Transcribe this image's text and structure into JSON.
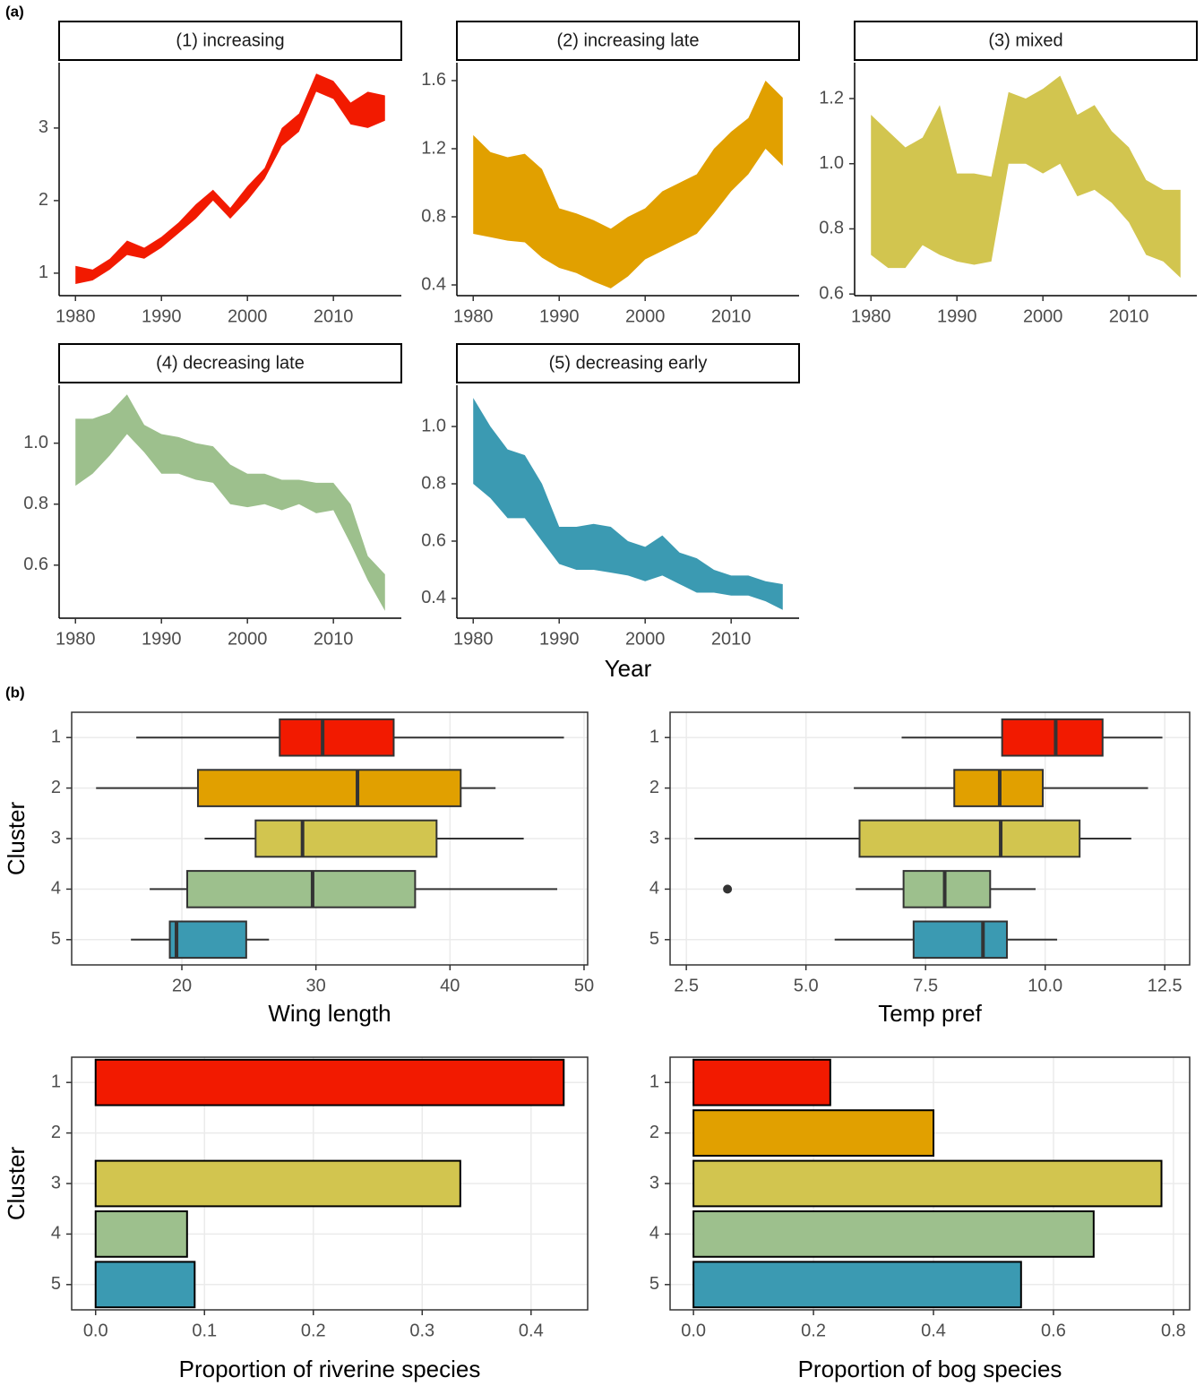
{
  "panel_labels": [
    "(a)",
    "(b)"
  ],
  "chart_data": [
    {
      "type": "ribbon",
      "title": "(1) increasing",
      "color": "#f21a00",
      "x": [
        1980,
        1982,
        1984,
        1986,
        1988,
        1990,
        1992,
        1994,
        1996,
        1998,
        2000,
        2002,
        2004,
        2006,
        2008,
        2010,
        2012,
        2014,
        2016
      ],
      "lower": [
        0.85,
        0.9,
        1.05,
        1.25,
        1.2,
        1.35,
        1.55,
        1.75,
        2.0,
        1.75,
        2.0,
        2.3,
        2.75,
        2.95,
        3.5,
        3.4,
        3.05,
        3.0,
        3.1
      ],
      "upper": [
        1.1,
        1.05,
        1.2,
        1.45,
        1.35,
        1.5,
        1.7,
        1.95,
        2.15,
        1.9,
        2.2,
        2.45,
        3.0,
        3.2,
        3.75,
        3.65,
        3.35,
        3.5,
        3.45
      ],
      "xlim": [
        1978.1,
        2017.9
      ],
      "ylim": [
        0.69,
        3.9
      ],
      "xticks": [
        1980,
        1990,
        2000,
        2010
      ],
      "yticks": [
        1,
        2,
        3
      ]
    },
    {
      "type": "ribbon",
      "title": "(2) increasing late",
      "color": "#e1a000",
      "x": [
        1980,
        1982,
        1984,
        1986,
        1988,
        1990,
        1992,
        1994,
        1996,
        1998,
        2000,
        2002,
        2004,
        2006,
        2008,
        2010,
        2012,
        2014,
        2016
      ],
      "lower": [
        0.7,
        0.68,
        0.66,
        0.65,
        0.56,
        0.5,
        0.47,
        0.42,
        0.38,
        0.45,
        0.55,
        0.6,
        0.65,
        0.7,
        0.82,
        0.95,
        1.05,
        1.2,
        1.1
      ],
      "upper": [
        1.28,
        1.18,
        1.15,
        1.17,
        1.08,
        0.85,
        0.82,
        0.78,
        0.73,
        0.8,
        0.85,
        0.95,
        1.0,
        1.05,
        1.2,
        1.3,
        1.38,
        1.6,
        1.5
      ],
      "xlim": [
        1978.1,
        2017.9
      ],
      "ylim": [
        0.337,
        1.705
      ],
      "xticks": [
        1980,
        1990,
        2000,
        2010
      ],
      "yticks": [
        0.4,
        0.8,
        1.2,
        1.6
      ]
    },
    {
      "type": "ribbon",
      "title": "(3) mixed",
      "color": "#d2c54f",
      "x": [
        1980,
        1982,
        1984,
        1986,
        1988,
        1990,
        1992,
        1994,
        1996,
        1998,
        2000,
        2002,
        2004,
        2006,
        2008,
        2010,
        2012,
        2014,
        2016
      ],
      "lower": [
        0.72,
        0.68,
        0.68,
        0.75,
        0.72,
        0.7,
        0.69,
        0.7,
        1.0,
        1.0,
        0.97,
        1.0,
        0.9,
        0.92,
        0.88,
        0.82,
        0.72,
        0.7,
        0.65
      ],
      "upper": [
        1.15,
        1.1,
        1.05,
        1.08,
        1.18,
        0.97,
        0.97,
        0.96,
        1.22,
        1.2,
        1.23,
        1.27,
        1.15,
        1.18,
        1.1,
        1.05,
        0.95,
        0.92,
        0.92
      ],
      "xlim": [
        1978.1,
        2017.9
      ],
      "ylim": [
        0.595,
        1.31
      ],
      "xticks": [
        1980,
        1990,
        2000,
        2010
      ],
      "yticks": [
        0.6,
        0.8,
        {
          "value": 1,
          "label": "1.0"
        },
        1.2
      ]
    },
    {
      "type": "ribbon",
      "title": "(4) decreasing late",
      "color": "#9dc08d",
      "x": [
        1980,
        1982,
        1984,
        1986,
        1988,
        1990,
        1992,
        1994,
        1996,
        1998,
        2000,
        2002,
        2004,
        2006,
        2008,
        2010,
        2012,
        2014,
        2016
      ],
      "lower": [
        0.86,
        0.9,
        0.96,
        1.03,
        0.97,
        0.9,
        0.9,
        0.88,
        0.87,
        0.8,
        0.79,
        0.8,
        0.78,
        0.8,
        0.77,
        0.78,
        0.67,
        0.55,
        0.45
      ],
      "upper": [
        1.08,
        1.08,
        1.1,
        1.16,
        1.06,
        1.03,
        1.02,
        1.0,
        0.99,
        0.93,
        0.9,
        0.9,
        0.88,
        0.88,
        0.87,
        0.87,
        0.8,
        0.63,
        0.57
      ],
      "xlim": [
        1978.1,
        2017.9
      ],
      "ylim": [
        0.426,
        1.19
      ],
      "xticks": [
        1980,
        1990,
        2000,
        2010
      ],
      "yticks": [
        0.6,
        0.8,
        {
          "value": 1,
          "label": "1.0"
        }
      ]
    },
    {
      "type": "ribbon",
      "title": "(5) decreasing early",
      "color": "#3b9ab2",
      "xlabel": "Year",
      "x": [
        1980,
        1982,
        1984,
        1986,
        1988,
        1990,
        1992,
        1994,
        1996,
        1998,
        2000,
        2002,
        2004,
        2006,
        2008,
        2010,
        2012,
        2014,
        2016
      ],
      "lower": [
        0.8,
        0.75,
        0.68,
        0.68,
        0.6,
        0.52,
        0.5,
        0.5,
        0.49,
        0.48,
        0.46,
        0.48,
        0.45,
        0.42,
        0.42,
        0.41,
        0.41,
        0.39,
        0.36
      ],
      "upper": [
        1.1,
        1.0,
        0.92,
        0.9,
        0.8,
        0.65,
        0.65,
        0.66,
        0.65,
        0.6,
        0.58,
        0.62,
        0.56,
        0.54,
        0.5,
        0.48,
        0.48,
        0.46,
        0.45
      ],
      "xlim": [
        1978.1,
        2017.9
      ],
      "ylim": [
        0.331,
        1.144
      ],
      "xticks": [
        1980,
        1990,
        2000,
        2010
      ],
      "yticks": [
        0.4,
        0.6,
        0.8,
        {
          "value": 1,
          "label": "1.0"
        }
      ]
    },
    {
      "type": "boxplot",
      "xlabel": "Wing length",
      "ylabel": "Cluster",
      "grid": true,
      "categories": [
        "1",
        "2",
        "3",
        "4",
        "5"
      ],
      "colors": [
        "#f21a00",
        "#e1a000",
        "#d2c54f",
        "#9dc08d",
        "#3b9ab2"
      ],
      "boxes": [
        {
          "min": 16.6,
          "q1": 27.3,
          "median": 30.5,
          "q3": 35.8,
          "max": 48.5,
          "outliers": []
        },
        {
          "min": 13.6,
          "q1": 21.2,
          "median": 33.1,
          "q3": 40.8,
          "max": 43.4,
          "outliers": []
        },
        {
          "min": 21.7,
          "q1": 25.5,
          "median": 29.0,
          "q3": 39.0,
          "max": 45.5,
          "outliers": []
        },
        {
          "min": 17.6,
          "q1": 20.4,
          "median": 29.75,
          "q3": 37.4,
          "max": 48.0,
          "outliers": []
        },
        {
          "min": 16.2,
          "q1": 19.1,
          "median": 19.6,
          "q3": 24.8,
          "max": 26.5,
          "outliers": []
        }
      ],
      "xlim": [
        11.78,
        50.27
      ],
      "xticks": [
        20,
        30,
        40,
        50
      ]
    },
    {
      "type": "boxplot",
      "xlabel": "Temp pref",
      "grid": true,
      "categories": [
        "1",
        "2",
        "3",
        "4",
        "5"
      ],
      "colors": [
        "#f21a00",
        "#e1a000",
        "#d2c54f",
        "#9dc08d",
        "#3b9ab2"
      ],
      "boxes": [
        {
          "min": 7.0,
          "q1": 9.1,
          "median": 10.22,
          "q3": 11.2,
          "max": 12.45,
          "outliers": []
        },
        {
          "min": 6.0,
          "q1": 8.1,
          "median": 9.05,
          "q3": 9.95,
          "max": 12.15,
          "outliers": []
        },
        {
          "min": 2.67,
          "q1": 6.12,
          "median": 9.07,
          "q3": 10.72,
          "max": 11.8,
          "outliers": []
        },
        {
          "min": 6.04,
          "q1": 7.04,
          "median": 7.9,
          "q3": 8.85,
          "max": 9.8,
          "outliers": [
            3.36
          ]
        },
        {
          "min": 5.6,
          "q1": 7.25,
          "median": 8.7,
          "q3": 9.2,
          "max": 10.25,
          "outliers": []
        }
      ],
      "xlim": [
        2.16,
        13.02
      ],
      "xticks": [
        2.5,
        {
          "value": 5,
          "label": "5.0"
        },
        7.5,
        {
          "value": 10,
          "label": "10.0"
        },
        12.5
      ]
    },
    {
      "type": "barh",
      "xlabel": "Proportion of riverine species",
      "ylabel": "Cluster",
      "grid": true,
      "categories": [
        "1",
        "2",
        "3",
        "4",
        "5"
      ],
      "colors": [
        "#f21a00",
        "#e1a000",
        "#d2c54f",
        "#9dc08d",
        "#3b9ab2"
      ],
      "values": [
        0.43,
        0,
        0.335,
        0.084,
        0.091
      ],
      "xlim": [
        -0.022,
        0.452
      ],
      "xticks": [
        {
          "value": 0,
          "label": "0.0"
        },
        0.1,
        0.2,
        0.3,
        0.4
      ]
    },
    {
      "type": "barh",
      "xlabel": "Proportion of bog species",
      "grid": true,
      "categories": [
        "1",
        "2",
        "3",
        "4",
        "5"
      ],
      "colors": [
        "#f21a00",
        "#e1a000",
        "#d2c54f",
        "#9dc08d",
        "#3b9ab2"
      ],
      "values": [
        0.228,
        0.4,
        0.78,
        0.667,
        0.546
      ],
      "xlim": [
        -0.039,
        0.827
      ],
      "xticks": [
        {
          "value": 0,
          "label": "0.0"
        },
        0.2,
        0.4,
        0.6,
        0.8
      ]
    }
  ]
}
